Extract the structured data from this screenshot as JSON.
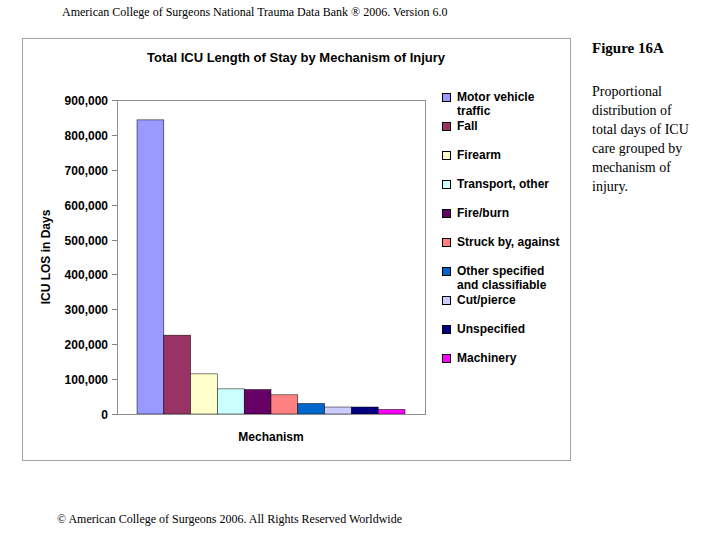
{
  "header": "American College of Surgeons National Trauma Data Bank ® 2006. Version 6.0",
  "figure_label": "Figure 16A",
  "caption": "Proportional distribution of total days of ICU care grouped by mechanism of injury.",
  "footer": "© American College of Surgeons 2006. All Rights Reserved Worldwide",
  "chart_data": {
    "type": "bar",
    "title": "Total ICU Length of Stay by Mechanism of Injury",
    "x_label": "Mechanism",
    "y_label": "ICU LOS in Days",
    "categories": [
      "Motor vehicle traffic",
      "Fall",
      "Firearm",
      "Transport, other",
      "Fire/burn",
      "Struck by, against",
      "Other specified and classifiable",
      "Cut/pierce",
      "Unspecified",
      "Machinery"
    ],
    "values": [
      843000,
      226000,
      115000,
      72000,
      70000,
      55000,
      30000,
      20000,
      20000,
      13000
    ],
    "colors": [
      "#9999ff",
      "#993366",
      "#ffffcc",
      "#ccffff",
      "#660066",
      "#ff8080",
      "#0066cc",
      "#ccccff",
      "#000080",
      "#ff00ff"
    ],
    "ylim": [
      0,
      900000
    ],
    "yticks": [
      0,
      {
        "value": 100000,
        "label": "100,000"
      },
      {
        "value": 200000,
        "label": "200,000"
      },
      {
        "value": 300000,
        "label": "300,000"
      },
      {
        "value": 400000,
        "label": "400,000"
      },
      {
        "value": 500000,
        "label": "500,000"
      },
      {
        "value": 600000,
        "label": "600,000"
      },
      {
        "value": 700000,
        "label": "700,000"
      },
      {
        "value": 800000,
        "label": "800,000"
      },
      {
        "value": 900000,
        "label": "900,000"
      }
    ],
    "grid": false,
    "legend": "right",
    "tick_labels": "y"
  }
}
